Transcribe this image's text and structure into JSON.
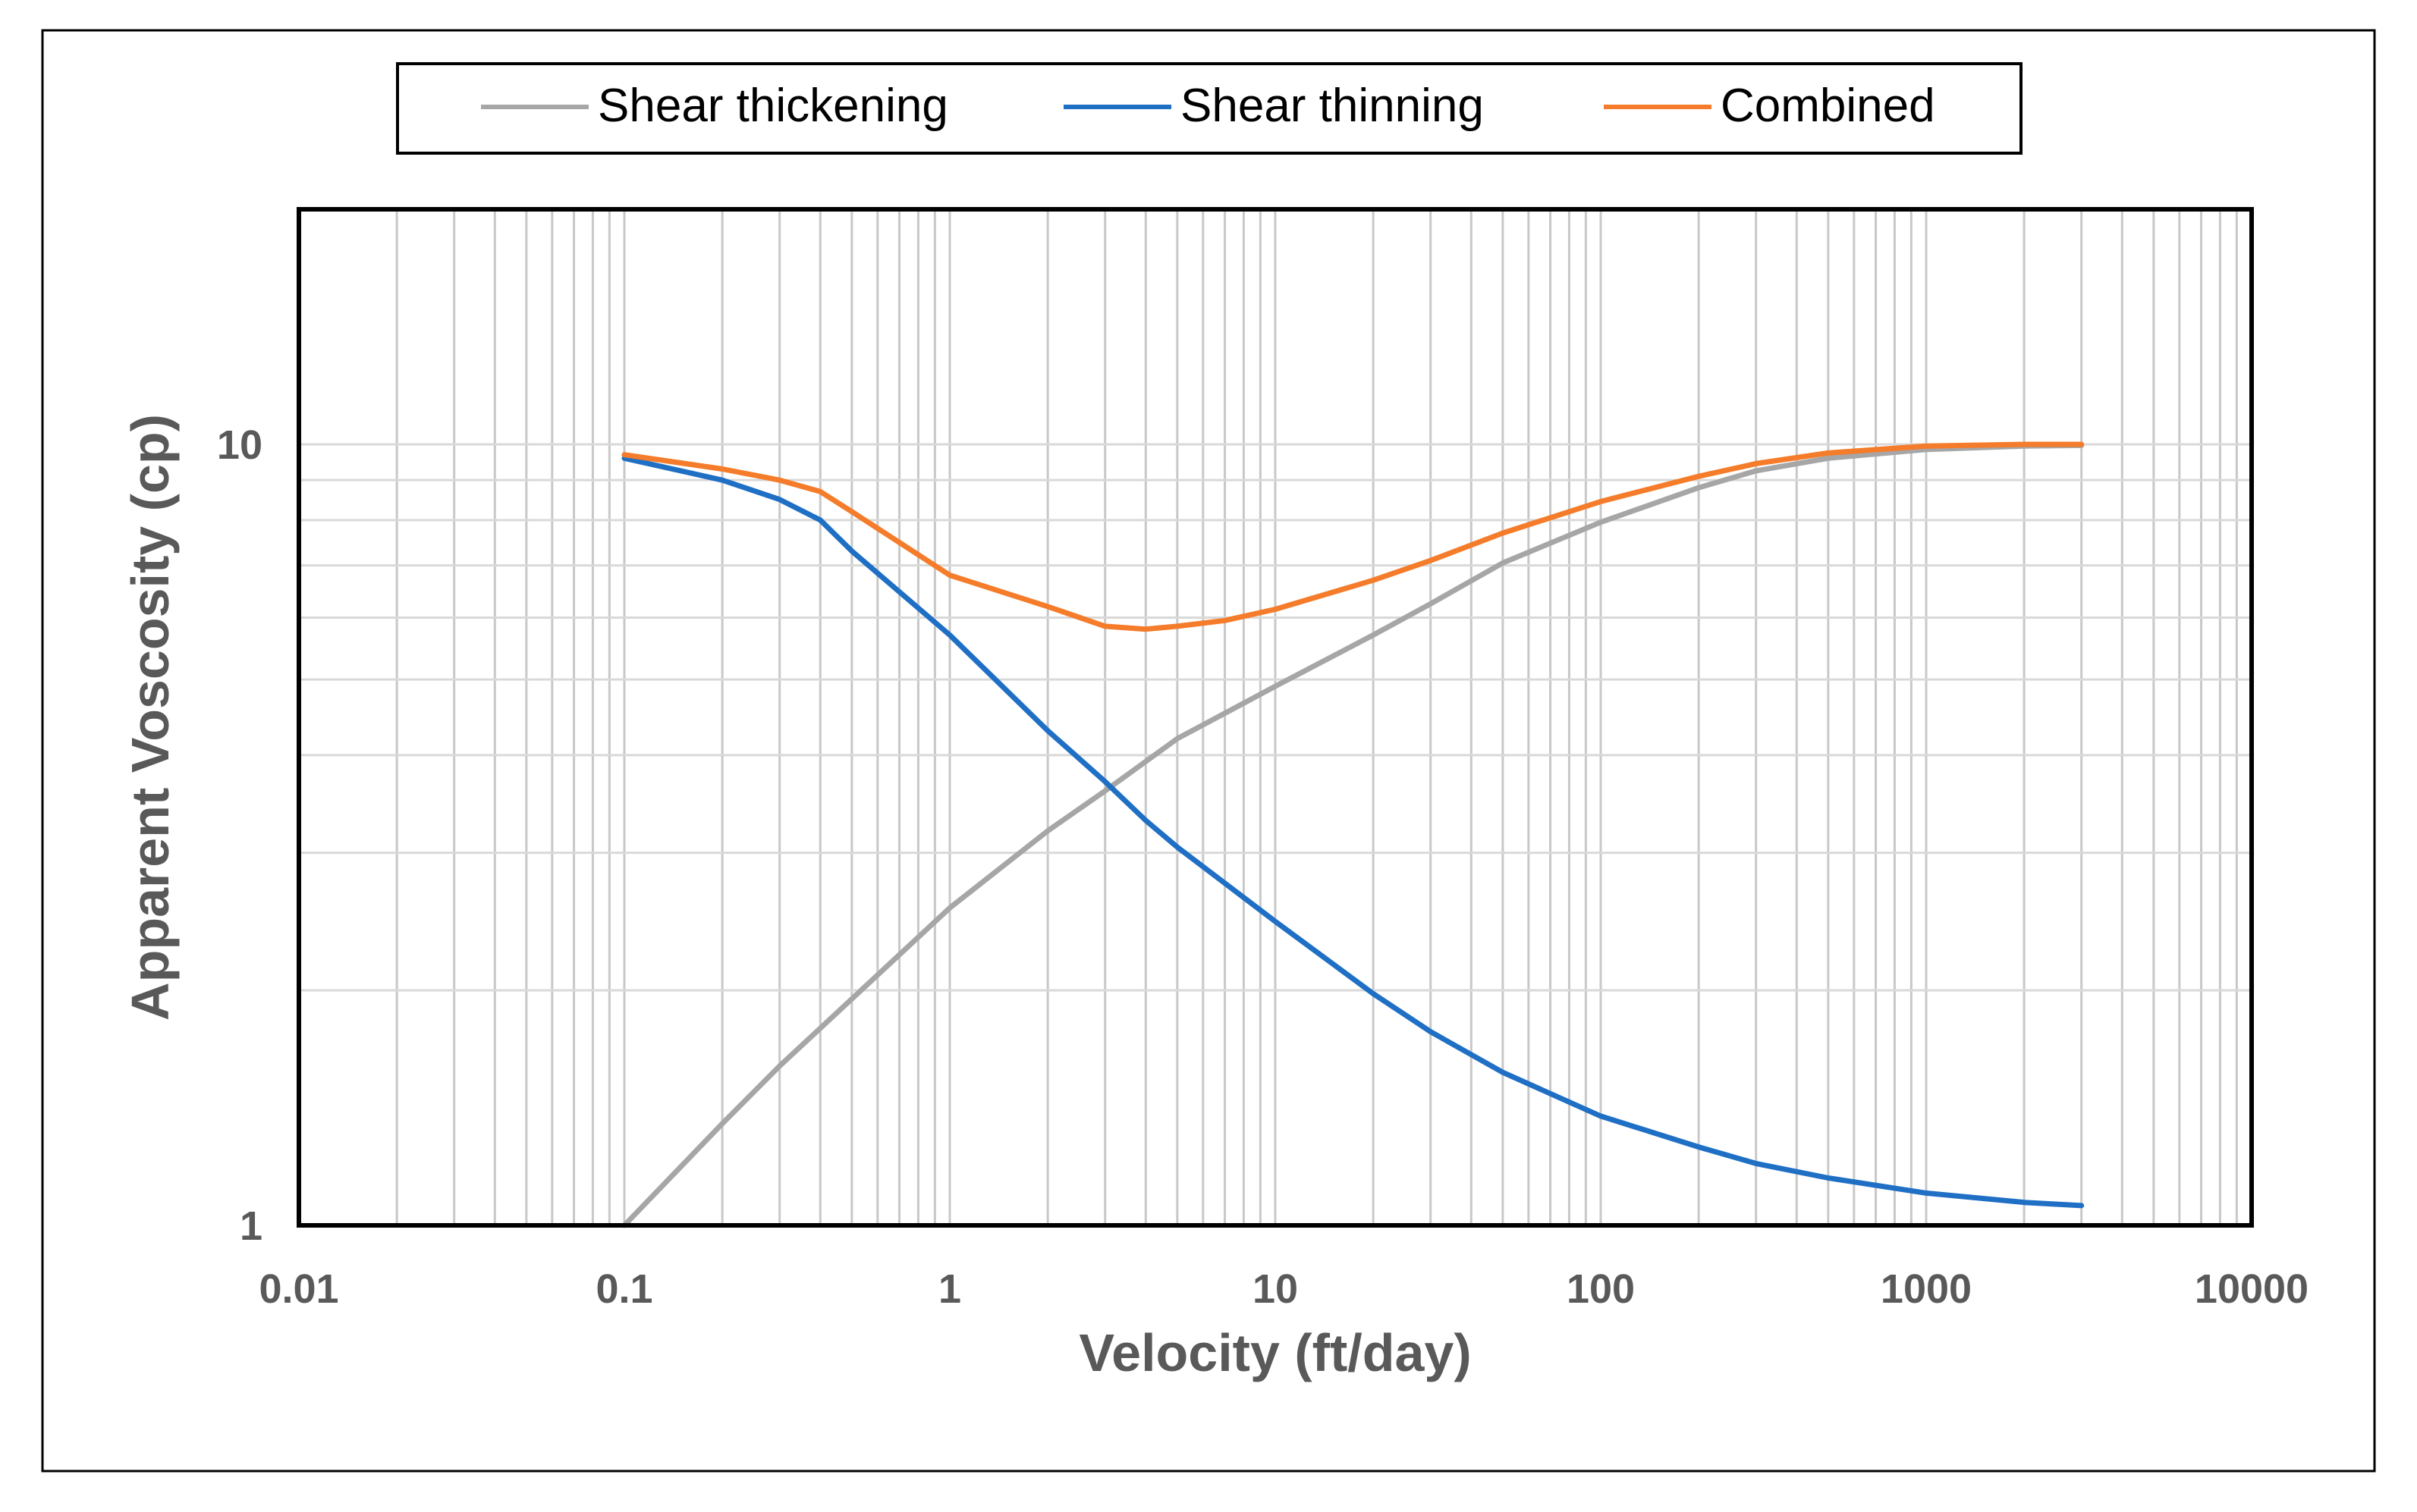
{
  "chart_data": {
    "type": "line",
    "xscale": "log",
    "yscale": "log",
    "xlabel": "Velocity (ft/day)",
    "ylabel": "Apparent Voscosity (cp)",
    "xlim": [
      0.01,
      10000
    ],
    "ylim": [
      1,
      20
    ],
    "x_ticks": [
      {
        "value": 0.01,
        "label": "0.01"
      },
      {
        "value": 0.1,
        "label": "0.1"
      },
      {
        "value": 1,
        "label": "1"
      },
      {
        "value": 10,
        "label": "10"
      },
      {
        "value": 100,
        "label": "100"
      },
      {
        "value": 1000,
        "label": "1000"
      },
      {
        "value": 10000,
        "label": "10000"
      }
    ],
    "y_ticks": [
      {
        "value": 1,
        "label": "1"
      },
      {
        "value": 10,
        "label": "10"
      }
    ],
    "grid": true,
    "legend_position": "top",
    "series": [
      {
        "name": "Shear thickening",
        "color": "#a6a6a6",
        "x": [
          0.1,
          0.2,
          0.3,
          0.5,
          1,
          2,
          3,
          5,
          10,
          20,
          30,
          50,
          100,
          200,
          300,
          500,
          1000,
          2000,
          3000
        ],
        "y": [
          1.0,
          1.35,
          1.6,
          1.95,
          2.55,
          3.2,
          3.6,
          4.2,
          4.9,
          5.7,
          6.25,
          7.05,
          7.95,
          8.8,
          9.25,
          9.6,
          9.85,
          9.95,
          9.97
        ]
      },
      {
        "name": "Shear thinning",
        "color": "#1f6fc5",
        "x": [
          0.1,
          0.2,
          0.3,
          0.4,
          0.5,
          1,
          2,
          3,
          4,
          5,
          10,
          20,
          30,
          50,
          100,
          200,
          300,
          500,
          1000,
          2000,
          3000
        ],
        "y": [
          9.6,
          9.0,
          8.5,
          8.0,
          7.3,
          5.7,
          4.3,
          3.7,
          3.3,
          3.05,
          2.45,
          1.98,
          1.77,
          1.57,
          1.38,
          1.26,
          1.2,
          1.15,
          1.1,
          1.07,
          1.06
        ]
      },
      {
        "name": "Combined",
        "color": "#f47c2a",
        "x": [
          0.1,
          0.2,
          0.3,
          0.4,
          0.5,
          1,
          2,
          3,
          4,
          5,
          7,
          10,
          20,
          30,
          50,
          100,
          200,
          300,
          500,
          1000,
          2000,
          3000
        ],
        "y": [
          9.7,
          9.3,
          9.0,
          8.7,
          8.2,
          6.8,
          6.2,
          5.85,
          5.8,
          5.85,
          5.95,
          6.15,
          6.7,
          7.1,
          7.7,
          8.45,
          9.1,
          9.45,
          9.75,
          9.95,
          10.0,
          10.0
        ]
      }
    ]
  }
}
